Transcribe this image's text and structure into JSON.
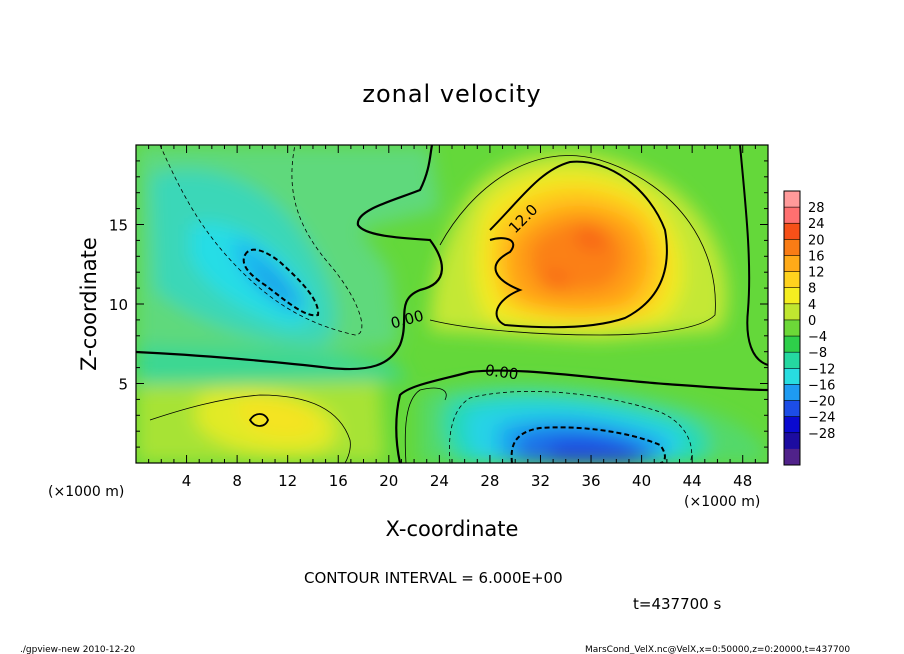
{
  "chart_data": {
    "type": "heatmap",
    "title": "zonal velocity",
    "xlabel": "X-coordinate",
    "ylabel": "Z-coordinate",
    "x_unit_label": "(×1000 m)",
    "y_unit_label": "(×1000 m)",
    "xlim": [
      0,
      50
    ],
    "ylim": [
      0,
      20
    ],
    "x_ticks": [
      "4",
      "8",
      "12",
      "16",
      "20",
      "24",
      "28",
      "32",
      "36",
      "40",
      "44",
      "48"
    ],
    "y_ticks": [
      "5",
      "10",
      "15"
    ],
    "colorbar": {
      "labels": [
        "28",
        "24",
        "20",
        "16",
        "12",
        "8",
        "4",
        "0",
        "−4",
        "−8",
        "−12",
        "−16",
        "−20",
        "−24",
        "−28"
      ],
      "colors": [
        "#ff9a9a",
        "#ff7070",
        "#f65018",
        "#f97c15",
        "#ffaa18",
        "#ffd21e",
        "#f5ee20",
        "#c0e630",
        "#6cd838",
        "#2ecf4a",
        "#25d8a0",
        "#28dde0",
        "#1e9bf2",
        "#1c4de6",
        "#0a0ad0",
        "#1c0ca0",
        "#50228a"
      ]
    },
    "contour_labels": [
      "12.0",
      "0.00",
      "0.00"
    ],
    "contour_interval_text": "CONTOUR INTERVAL = 6.000E+00",
    "time_text": "t=437700 s"
  },
  "footer": {
    "left": "./gpview-new  2010-12-20",
    "right": "MarsCond_VelX.nc@VelX,x=0:50000,z=0:20000,t=437700"
  }
}
